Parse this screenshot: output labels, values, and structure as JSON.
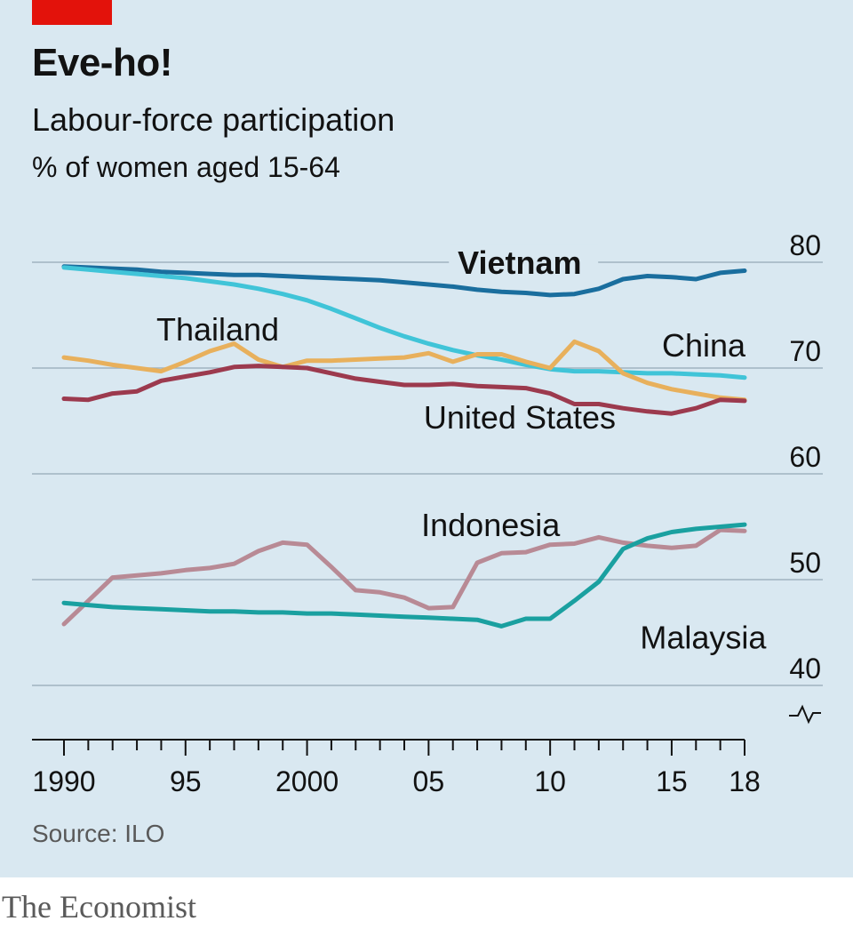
{
  "brand": "The Economist",
  "colors": {
    "background": "#d9e8f1",
    "accent": "#e3120b",
    "vietnam": "#1a6e9e",
    "china": "#40c4d8",
    "thailand": "#e8b05c",
    "united_states": "#9c3a4e",
    "indonesia": "#b88a95",
    "malaysia": "#1aa0a0"
  },
  "chart_data": {
    "type": "line",
    "title": "Eve-ho!",
    "subtitle": "Labour-force participation",
    "ylabel": "% of women aged 15-64",
    "source": "Source: ILO",
    "x": [
      1990,
      1991,
      1992,
      1993,
      1994,
      1995,
      1996,
      1997,
      1998,
      1999,
      2000,
      2001,
      2002,
      2003,
      2004,
      2005,
      2006,
      2007,
      2008,
      2009,
      2010,
      2011,
      2012,
      2013,
      2014,
      2015,
      2016,
      2017,
      2018
    ],
    "xlim": [
      1990,
      2018
    ],
    "xticks": [
      {
        "year": 1990,
        "label": "1990"
      },
      {
        "year": 1995,
        "label": "95"
      },
      {
        "year": 2000,
        "label": "2000"
      },
      {
        "year": 2005,
        "label": "05"
      },
      {
        "year": 2010,
        "label": "10"
      },
      {
        "year": 2015,
        "label": "15"
      },
      {
        "year": 2018,
        "label": "18"
      }
    ],
    "ylim": [
      35,
      80
    ],
    "yticks": [
      {
        "value": 80,
        "label": "80"
      },
      {
        "value": 70,
        "label": "70"
      },
      {
        "value": 60,
        "label": "60"
      },
      {
        "value": 50,
        "label": "50"
      },
      {
        "value": 40,
        "label": "40"
      }
    ],
    "series": [
      {
        "name": "Vietnam",
        "key": "vietnam",
        "label_bold": true,
        "label_pos": {
          "year": 2006.2,
          "value": 78.9
        },
        "values": [
          79.6,
          79.5,
          79.4,
          79.3,
          79.1,
          79.0,
          78.9,
          78.8,
          78.8,
          78.7,
          78.6,
          78.5,
          78.4,
          78.3,
          78.1,
          77.9,
          77.7,
          77.4,
          77.2,
          77.1,
          76.9,
          77.0,
          77.5,
          78.4,
          78.7,
          78.6,
          78.4,
          79.0,
          79.2
        ]
      },
      {
        "name": "China",
        "key": "china",
        "label_bold": false,
        "label_pos": {
          "year": 2014.6,
          "value": 71.1
        },
        "values": [
          79.5,
          79.3,
          79.1,
          78.9,
          78.7,
          78.5,
          78.2,
          77.9,
          77.5,
          77.0,
          76.4,
          75.6,
          74.7,
          73.8,
          73.0,
          72.3,
          71.7,
          71.2,
          70.8,
          70.3,
          69.9,
          69.7,
          69.7,
          69.6,
          69.5,
          69.5,
          69.4,
          69.3,
          69.1
        ]
      },
      {
        "name": "Thailand",
        "key": "thailand",
        "label_bold": false,
        "label_pos": {
          "year": 1993.8,
          "value": 72.6
        },
        "values": [
          71.0,
          70.7,
          70.3,
          70.0,
          69.7,
          70.6,
          71.6,
          72.3,
          70.8,
          70.1,
          70.7,
          70.7,
          70.8,
          70.9,
          71.0,
          71.4,
          70.6,
          71.3,
          71.3,
          70.6,
          70.0,
          72.5,
          71.6,
          69.5,
          68.6,
          68.0,
          67.6,
          67.2,
          67.0
        ]
      },
      {
        "name": "United States",
        "key": "united_states",
        "label_bold": false,
        "label_pos": {
          "year": 2004.8,
          "value": 64.3
        },
        "values": [
          67.1,
          67.0,
          67.6,
          67.8,
          68.8,
          69.2,
          69.6,
          70.1,
          70.2,
          70.1,
          70.0,
          69.5,
          69.0,
          68.7,
          68.4,
          68.4,
          68.5,
          68.3,
          68.2,
          68.1,
          67.6,
          66.6,
          66.6,
          66.2,
          65.9,
          65.7,
          66.2,
          67.0,
          66.9
        ]
      },
      {
        "name": "Indonesia",
        "key": "indonesia",
        "label_bold": false,
        "label_pos": {
          "year": 2004.7,
          "value": 54.1
        },
        "values": [
          45.8,
          48.0,
          50.2,
          50.4,
          50.6,
          50.9,
          51.1,
          51.5,
          52.7,
          53.5,
          53.3,
          51.2,
          49.0,
          48.8,
          48.3,
          47.3,
          47.4,
          51.6,
          52.5,
          52.6,
          53.3,
          53.4,
          54.0,
          53.5,
          53.2,
          53.0,
          53.2,
          54.7,
          54.6
        ]
      },
      {
        "name": "Malaysia",
        "key": "malaysia",
        "label_bold": false,
        "label_pos": {
          "year": 2013.7,
          "value": 43.5
        },
        "values": [
          47.8,
          47.6,
          47.4,
          47.3,
          47.2,
          47.1,
          47.0,
          47.0,
          46.9,
          46.9,
          46.8,
          46.8,
          46.7,
          46.6,
          46.5,
          46.4,
          46.3,
          46.2,
          45.6,
          46.3,
          46.3,
          48.0,
          49.8,
          52.9,
          53.9,
          54.5,
          54.8,
          55.0,
          55.2
        ]
      }
    ]
  }
}
